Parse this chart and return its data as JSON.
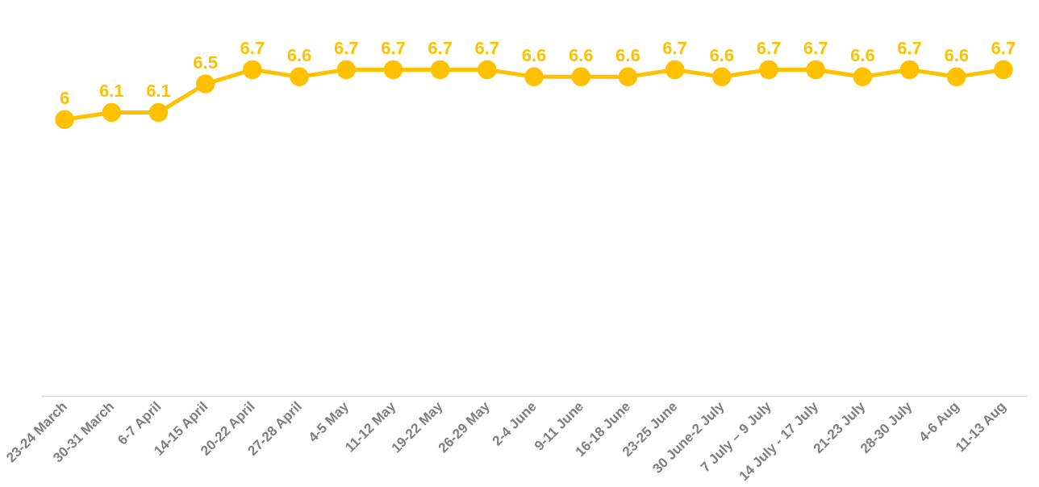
{
  "chart_data": {
    "type": "line",
    "categories": [
      "23-24 March",
      "30-31 March",
      "6-7 April",
      "14-15 April",
      "20-22 April",
      "27-28 April",
      "4-5 May",
      "11-12 May",
      "19-22 May",
      "26-29 May",
      "2-4 June",
      "9-11 June",
      "16-18 June",
      "23-25 June",
      "30 June-2 July",
      "7 July – 9 July",
      "14 July - 17 July",
      "21-23 July",
      "28-30 July",
      "4-6 Aug",
      "11-13 Aug"
    ],
    "series": [
      {
        "color": "#ffc000",
        "values": [
          6,
          6.1,
          6.1,
          6.5,
          6.7,
          6.6,
          6.7,
          6.7,
          6.7,
          6.7,
          6.6,
          6.6,
          6.6,
          6.7,
          6.6,
          6.7,
          6.7,
          6.6,
          6.7,
          6.6,
          6.7
        ]
      }
    ],
    "tick_labels": "x",
    "grid": false,
    "marker": "circle",
    "line_style": "solid",
    "data_labels": true
  }
}
